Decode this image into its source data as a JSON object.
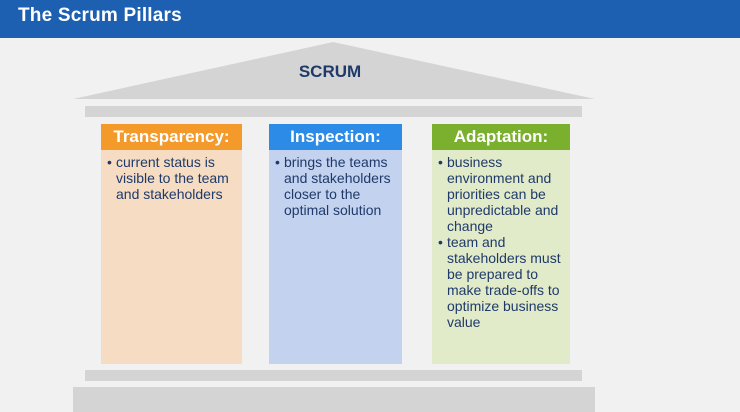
{
  "header": {
    "title": "The Scrum Pillars"
  },
  "roof": {
    "label": "SCRUM"
  },
  "pillars": [
    {
      "title": "Transparency:",
      "header_color": "#f39a2b",
      "body_color": "#f5dcc2",
      "bullets": [
        "current status is visible to the team and stakeholders"
      ]
    },
    {
      "title": "Inspection:",
      "header_color": "#2b8be6",
      "body_color": "#c3d2ef",
      "bullets": [
        "brings the teams and stakeholders closer to the optimal solution"
      ]
    },
    {
      "title": "Adaptation:",
      "header_color": "#7ab02d",
      "body_color": "#e1ebc9",
      "bullets": [
        "business environment and priorities can be unpredictable and change",
        "team and stakeholders must be prepared to make trade-offs to optimize business value"
      ]
    }
  ],
  "colors": {
    "header_bg": "#1d5fb0",
    "roof": "#d4d4d4",
    "text": "#1f3a6a"
  },
  "bullet_symbol": "•"
}
